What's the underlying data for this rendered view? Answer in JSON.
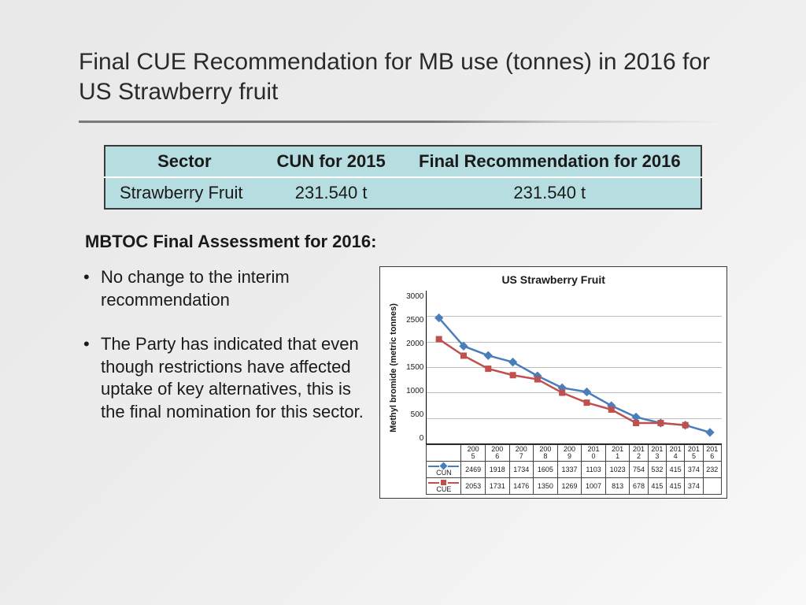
{
  "title": "Final CUE Recommendation for MB use (tonnes) in 2016 for US Strawberry fruit",
  "table": {
    "header_bg": "#b6dde0",
    "row_bg": "#b6dde0",
    "columns": [
      "Sector",
      "CUN for 2015",
      "Final Recommendation for 2016"
    ],
    "rows": [
      [
        "Strawberry Fruit",
        "231.540 t",
        "231.540 t"
      ]
    ]
  },
  "subheader": "MBTOC Final Assessment for 2016",
  "bullets": [
    "No change to the interim recommendation",
    "The Party has indicated that even though restrictions have affected uptake of key alternatives, this is the final nomination for this sector."
  ],
  "chart": {
    "type": "line",
    "title": "US Strawberry Fruit",
    "ylabel": "Methyl bromide (metric tonnes)",
    "ylim": [
      0,
      3000
    ],
    "ytick_step": 500,
    "yticks": [
      "3000",
      "2500",
      "2000",
      "1500",
      "1000",
      "500",
      "0"
    ],
    "grid_color": "#bfbfbf",
    "background_color": "#ffffff",
    "categories": [
      "2005",
      "2006",
      "2007",
      "2008",
      "2009",
      "2010",
      "2011",
      "2012",
      "2013",
      "2014",
      "2015",
      "2016"
    ],
    "categories_wrapped": [
      [
        "200",
        "5"
      ],
      [
        "200",
        "6"
      ],
      [
        "200",
        "7"
      ],
      [
        "200",
        "8"
      ],
      [
        "200",
        "9"
      ],
      [
        "201",
        "0"
      ],
      [
        "201",
        "1"
      ],
      [
        "201",
        "2"
      ],
      [
        "201",
        "3"
      ],
      [
        "201",
        "4"
      ],
      [
        "201",
        "5"
      ],
      [
        "201",
        "6"
      ]
    ],
    "series": [
      {
        "name": "CUN",
        "color": "#4a7ebb",
        "marker": "diamond",
        "values": [
          2469,
          1918,
          1734,
          1605,
          1337,
          1103,
          1023,
          754,
          532,
          415,
          374,
          232
        ]
      },
      {
        "name": "CUE",
        "color": "#c0504d",
        "marker": "square",
        "values": [
          2053,
          1731,
          1476,
          1350,
          1269,
          1007,
          813,
          678,
          415,
          415,
          374,
          null
        ]
      }
    ],
    "label_fontsize": 11,
    "line_width": 2.5,
    "marker_size": 8
  }
}
